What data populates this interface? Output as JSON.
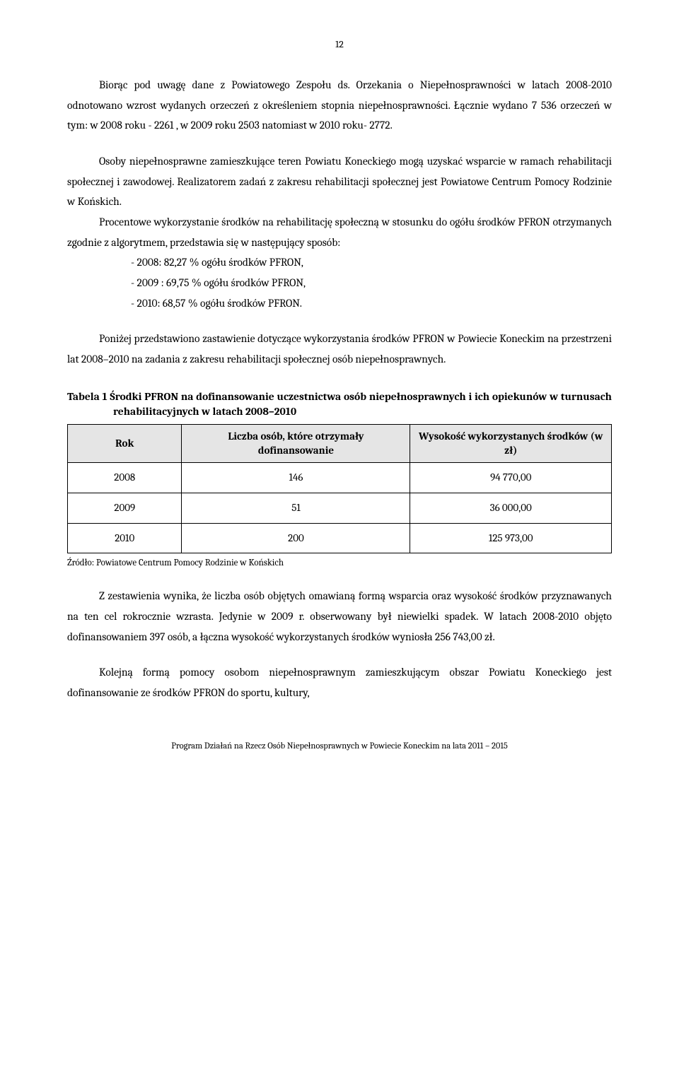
{
  "page_number": "12",
  "body": {
    "p1": "Biorąc pod uwagę dane z Powiatowego Zespołu ds. Orzekania o Niepełnosprawności w latach 2008-2010 odnotowano wzrost wydanych orzeczeń z określeniem stopnia niepełnosprawności. Łącznie wydano 7 536 orzeczeń w tym: w 2008 roku - 2261 , w 2009 roku 2503 natomiast w 2010 roku- 2772.",
    "p2": "Osoby niepełnosprawne zamieszkujące teren Powiatu Koneckiego mogą uzyskać wsparcie w ramach rehabilitacji społecznej i zawodowej. Realizatorem zadań z zakresu rehabilitacji społecznej jest Powiatowe Centrum Pomocy Rodzinie w Końskich.",
    "p3": "Procentowe wykorzystanie środków na rehabilitację społeczną w stosunku do ogółu środków PFRON otrzymanych zgodnie z algorytmem, przedstawia się w  następujący sposób:",
    "li1": "- 2008: 82,27 % ogółu środków  PFRON,",
    "li2": "- 2009 : 69,75 % ogółu środków  PFRON,",
    "li3": "- 2010: 68,57 % ogółu środków  PFRON.",
    "p4": "Poniżej przedstawiono zastawienie dotyczące wykorzystania środków PFRON w Powiecie Koneckim na przestrzeni lat 2008–2010 na zadania z zakresu rehabilitacji społecznej osób niepełnosprawnych.",
    "p5": "Z zestawienia wynika, że liczba osób objętych omawianą formą wsparcia oraz wysokość środków przyznawanych na ten cel rokrocznie wzrasta. Jedynie w 2009 r. obserwowany był niewielki spadek. W latach 2008-2010  objęto dofinansowaniem 397 osób,  a  łączna wysokość wykorzystanych środków wyniosła 256 743,00 zł.",
    "p6": "Kolejną formą pomocy osobom niepełnosprawnym zamieszkującym obszar Powiatu Koneckiego jest dofinansowanie ze środków PFRON do sportu, kultury,"
  },
  "table1": {
    "title": "Tabela 1 Środki PFRON na dofinansowanie uczestnictwa osób niepełnosprawnych i ich opiekunów w turnusach rehabilitacyjnych w latach 2008–2010",
    "columns": [
      "Rok",
      "Liczba osób, które otrzymały dofinansowanie",
      "Wysokość wykorzystanych środków (w zł)"
    ],
    "rows": [
      [
        "2008",
        "146",
        "94 770,00"
      ],
      [
        "2009",
        "51",
        "36 000,00"
      ],
      [
        "2010",
        "200",
        "125 973,00"
      ]
    ],
    "col_widths": [
      "21%",
      "42%",
      "37%"
    ],
    "header_bg": "#e5e5e5",
    "border_color": "#000000",
    "source": "Źródło: Powiatowe Centrum Pomocy Rodzinie w Końskich"
  },
  "footer_text": "Program Działań na Rzecz Osób Niepełnosprawnych w Powiecie Koneckim na lata 2011 – 2015"
}
